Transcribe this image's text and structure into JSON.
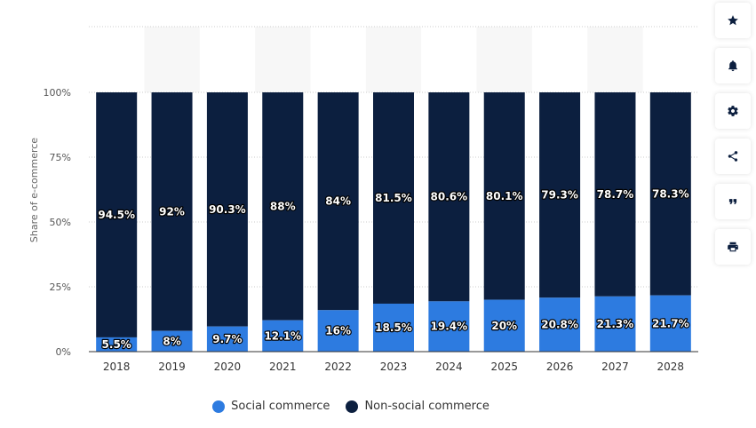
{
  "chart_data": {
    "type": "bar",
    "stacked": true,
    "categories": [
      "2018",
      "2019",
      "2020",
      "2021",
      "2022",
      "2023",
      "2024",
      "2025",
      "2026",
      "2027",
      "2028"
    ],
    "series": [
      {
        "name": "Social commerce",
        "color": "#2d7be0",
        "values": [
          5.5,
          8,
          9.7,
          12.1,
          16,
          18.5,
          19.4,
          20,
          20.8,
          21.3,
          21.7
        ],
        "labels": [
          "5.5%",
          "8%",
          "9.7%",
          "12.1%",
          "16%",
          "18.5%",
          "19.4%",
          "20%",
          "20.8%",
          "21.3%",
          "21.7%"
        ]
      },
      {
        "name": "Non-social commerce",
        "color": "#0c1f3f",
        "values": [
          94.5,
          92,
          90.3,
          88,
          84,
          81.5,
          80.6,
          80.1,
          79.3,
          78.7,
          78.3
        ],
        "labels": [
          "94.5%",
          "92%",
          "90.3%",
          "88%",
          "84%",
          "81.5%",
          "80.6%",
          "80.1%",
          "79.3%",
          "78.7%",
          "78.3%"
        ]
      }
    ],
    "ylabel": "Share of e-commerce",
    "xlabel": "",
    "ylim": [
      0,
      100
    ],
    "yticks": [
      0,
      25,
      50,
      75,
      100
    ],
    "ytick_labels": [
      "0%",
      "25%",
      "50%",
      "75%",
      "100%"
    ],
    "grid": true,
    "legend_position": "bottom-center"
  },
  "legend": {
    "items": [
      {
        "label": "Social commerce",
        "color": "#2d7be0"
      },
      {
        "label": "Non-social commerce",
        "color": "#0c1f3f"
      }
    ]
  },
  "toolbar": {
    "buttons": [
      {
        "name": "star-icon",
        "label": "Favorite"
      },
      {
        "name": "bell-icon",
        "label": "Notifications"
      },
      {
        "name": "gear-icon",
        "label": "Settings"
      },
      {
        "name": "share-icon",
        "label": "Share"
      },
      {
        "name": "quote-icon",
        "label": "Cite"
      },
      {
        "name": "print-icon",
        "label": "Print"
      }
    ]
  }
}
